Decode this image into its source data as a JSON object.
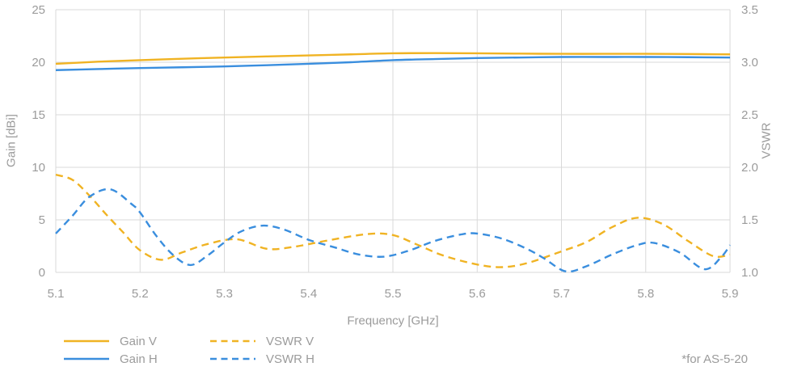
{
  "axes": {
    "x": {
      "title": "Frequency [GHz]"
    },
    "y_left": {
      "title": "Gain [dBi]"
    },
    "y_right": {
      "title": "VSWR"
    }
  },
  "footnote": "*for AS-5-20",
  "colors": {
    "yellow": "#F0B323",
    "blue": "#3A8EDE",
    "grid": "#D9D9D9",
    "text": "#9B9B9B"
  },
  "legend": [
    {
      "label": "Gain V",
      "color": "#F0B323",
      "dashed": false,
      "column": 0
    },
    {
      "label": "Gain H",
      "color": "#3A8EDE",
      "dashed": false,
      "column": 0
    },
    {
      "label": "VSWR V",
      "color": "#F0B323",
      "dashed": true,
      "column": 1
    },
    {
      "label": "VSWR H",
      "color": "#3A8EDE",
      "dashed": true,
      "column": 1
    }
  ],
  "chart_data": {
    "type": "line",
    "title": "",
    "xlabel": "Frequency [GHz]",
    "ylabel_left": "Gain [dBi]",
    "ylabel_right": "VSWR",
    "xlim": [
      5.1,
      5.9
    ],
    "ylim_left": [
      0,
      25
    ],
    "ylim_right": [
      1.0,
      3.5
    ],
    "grid": true,
    "legend_position": "bottom-left",
    "x_ticks": [
      {
        "v": 5.1,
        "label": "5.1"
      },
      {
        "v": 5.2,
        "label": "5.2"
      },
      {
        "v": 5.3,
        "label": "5.3"
      },
      {
        "v": 5.4,
        "label": "5.4"
      },
      {
        "v": 5.5,
        "label": "5.5"
      },
      {
        "v": 5.6,
        "label": "5.6"
      },
      {
        "v": 5.7,
        "label": "5.7"
      },
      {
        "v": 5.8,
        "label": "5.8"
      },
      {
        "v": 5.9,
        "label": "5.9"
      }
    ],
    "y_left_ticks": [
      {
        "v": 0,
        "label": "0"
      },
      {
        "v": 5,
        "label": "5"
      },
      {
        "v": 10,
        "label": "10"
      },
      {
        "v": 15,
        "label": "15"
      },
      {
        "v": 20,
        "label": "20"
      },
      {
        "v": 25,
        "label": "25"
      }
    ],
    "y_right_ticks": [
      {
        "v": 1.0,
        "label": "1.0"
      },
      {
        "v": 1.5,
        "label": "1.5"
      },
      {
        "v": 2.0,
        "label": "2.0"
      },
      {
        "v": 2.5,
        "label": "2.5"
      },
      {
        "v": 3.0,
        "label": "3.0"
      },
      {
        "v": 3.5,
        "label": "3.5"
      }
    ],
    "series": [
      {
        "name": "Gain V",
        "axis": "left",
        "color": "#F0B323",
        "dashed": false,
        "points": [
          [
            5.1,
            19.85
          ],
          [
            5.15,
            20.05
          ],
          [
            5.2,
            20.2
          ],
          [
            5.25,
            20.33
          ],
          [
            5.3,
            20.45
          ],
          [
            5.35,
            20.55
          ],
          [
            5.4,
            20.65
          ],
          [
            5.45,
            20.75
          ],
          [
            5.5,
            20.85
          ],
          [
            5.55,
            20.87
          ],
          [
            5.6,
            20.85
          ],
          [
            5.65,
            20.82
          ],
          [
            5.7,
            20.8
          ],
          [
            5.75,
            20.8
          ],
          [
            5.8,
            20.8
          ],
          [
            5.85,
            20.78
          ],
          [
            5.9,
            20.75
          ]
        ]
      },
      {
        "name": "Gain H",
        "axis": "left",
        "color": "#3A8EDE",
        "dashed": false,
        "points": [
          [
            5.1,
            19.25
          ],
          [
            5.15,
            19.35
          ],
          [
            5.2,
            19.45
          ],
          [
            5.25,
            19.52
          ],
          [
            5.3,
            19.6
          ],
          [
            5.35,
            19.72
          ],
          [
            5.4,
            19.85
          ],
          [
            5.45,
            20.0
          ],
          [
            5.5,
            20.2
          ],
          [
            5.55,
            20.3
          ],
          [
            5.6,
            20.4
          ],
          [
            5.65,
            20.45
          ],
          [
            5.7,
            20.5
          ],
          [
            5.75,
            20.5
          ],
          [
            5.8,
            20.5
          ],
          [
            5.85,
            20.48
          ],
          [
            5.9,
            20.45
          ]
        ]
      },
      {
        "name": "VSWR V",
        "axis": "right",
        "color": "#F0B323",
        "dashed": true,
        "points": [
          [
            5.1,
            1.93
          ],
          [
            5.12,
            1.88
          ],
          [
            5.14,
            1.73
          ],
          [
            5.16,
            1.55
          ],
          [
            5.18,
            1.38
          ],
          [
            5.2,
            1.21
          ],
          [
            5.225,
            1.12
          ],
          [
            5.25,
            1.19
          ],
          [
            5.28,
            1.27
          ],
          [
            5.315,
            1.315
          ],
          [
            5.35,
            1.225
          ],
          [
            5.38,
            1.24
          ],
          [
            5.42,
            1.3
          ],
          [
            5.47,
            1.365
          ],
          [
            5.5,
            1.355
          ],
          [
            5.53,
            1.26
          ],
          [
            5.56,
            1.16
          ],
          [
            5.6,
            1.075
          ],
          [
            5.63,
            1.05
          ],
          [
            5.66,
            1.09
          ],
          [
            5.7,
            1.2
          ],
          [
            5.73,
            1.29
          ],
          [
            5.76,
            1.43
          ],
          [
            5.79,
            1.52
          ],
          [
            5.82,
            1.46
          ],
          [
            5.85,
            1.3
          ],
          [
            5.88,
            1.155
          ],
          [
            5.9,
            1.17
          ]
        ]
      },
      {
        "name": "VSWR H",
        "axis": "right",
        "color": "#3A8EDE",
        "dashed": true,
        "points": [
          [
            5.1,
            1.37
          ],
          [
            5.12,
            1.54
          ],
          [
            5.14,
            1.72
          ],
          [
            5.165,
            1.79
          ],
          [
            5.19,
            1.65
          ],
          [
            5.2,
            1.57
          ],
          [
            5.22,
            1.34
          ],
          [
            5.24,
            1.16
          ],
          [
            5.26,
            1.07
          ],
          [
            5.28,
            1.16
          ],
          [
            5.3,
            1.285
          ],
          [
            5.32,
            1.39
          ],
          [
            5.345,
            1.445
          ],
          [
            5.37,
            1.41
          ],
          [
            5.4,
            1.31
          ],
          [
            5.43,
            1.24
          ],
          [
            5.46,
            1.17
          ],
          [
            5.49,
            1.15
          ],
          [
            5.52,
            1.21
          ],
          [
            5.55,
            1.3
          ],
          [
            5.58,
            1.36
          ],
          [
            5.6,
            1.37
          ],
          [
            5.63,
            1.32
          ],
          [
            5.66,
            1.22
          ],
          [
            5.68,
            1.13
          ],
          [
            5.705,
            1.01
          ],
          [
            5.73,
            1.06
          ],
          [
            5.76,
            1.17
          ],
          [
            5.79,
            1.26
          ],
          [
            5.81,
            1.28
          ],
          [
            5.84,
            1.19
          ],
          [
            5.87,
            1.03
          ],
          [
            5.89,
            1.15
          ],
          [
            5.9,
            1.26
          ]
        ]
      }
    ]
  }
}
